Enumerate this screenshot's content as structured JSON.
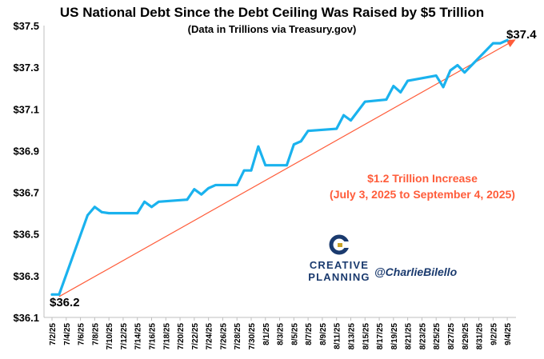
{
  "chart_data": {
    "type": "line",
    "title": "US National Debt Since the Debt Ceiling Was Raised by $5 Trillion",
    "subtitle": "(Data in Trillions via Treasury.gov)",
    "xlabel": "",
    "ylabel": "",
    "ylim": [
      36.1,
      37.5
    ],
    "y_ticks": [
      "$36.1",
      "$36.3",
      "$36.5",
      "$36.7",
      "$36.9",
      "$37.1",
      "$37.3",
      "$37.5"
    ],
    "y_tick_values": [
      36.1,
      36.3,
      36.5,
      36.7,
      36.9,
      37.1,
      37.3,
      37.5
    ],
    "x_range": [
      "2025-07-02",
      "2025-09-05"
    ],
    "x_ticks": [
      "7/2/25",
      "7/4/25",
      "7/6/25",
      "7/8/25",
      "7/10/25",
      "7/12/25",
      "7/14/25",
      "7/16/25",
      "7/18/25",
      "7/20/25",
      "7/22/25",
      "7/24/25",
      "7/26/25",
      "7/28/25",
      "7/30/25",
      "8/1/25",
      "8/3/25",
      "8/5/25",
      "8/7/25",
      "8/9/25",
      "8/11/25",
      "8/13/25",
      "8/15/25",
      "8/17/25",
      "8/19/25",
      "8/21/25",
      "8/23/25",
      "8/25/25",
      "8/27/25",
      "8/29/25",
      "8/31/25",
      "9/2/25",
      "9/4/25"
    ],
    "grid": false,
    "series": [
      {
        "color": "#1ab2ee",
        "x": [
          "2025-07-02",
          "2025-07-03",
          "2025-07-07",
          "2025-07-08",
          "2025-07-09",
          "2025-07-10",
          "2025-07-14",
          "2025-07-15",
          "2025-07-16",
          "2025-07-17",
          "2025-07-21",
          "2025-07-22",
          "2025-07-23",
          "2025-07-24",
          "2025-07-25",
          "2025-07-28",
          "2025-07-29",
          "2025-07-30",
          "2025-07-31",
          "2025-08-01",
          "2025-08-04",
          "2025-08-05",
          "2025-08-06",
          "2025-08-07",
          "2025-08-11",
          "2025-08-12",
          "2025-08-13",
          "2025-08-15",
          "2025-08-18",
          "2025-08-19",
          "2025-08-20",
          "2025-08-21",
          "2025-08-25",
          "2025-08-26",
          "2025-08-27",
          "2025-08-28",
          "2025-08-29",
          "2025-09-02",
          "2025-09-03",
          "2025-09-04"
        ],
        "values": [
          36.21,
          36.21,
          36.59,
          36.63,
          36.605,
          36.6,
          36.6,
          36.655,
          36.63,
          36.655,
          36.665,
          36.715,
          36.69,
          36.72,
          36.735,
          36.735,
          36.805,
          36.805,
          36.92,
          36.83,
          36.83,
          36.93,
          36.945,
          36.995,
          37.005,
          37.07,
          37.045,
          37.135,
          37.145,
          37.21,
          37.18,
          37.235,
          37.26,
          37.205,
          37.285,
          37.31,
          37.275,
          37.415,
          37.415,
          37.43
        ]
      }
    ],
    "trend_line": {
      "color": "#ff5c3a",
      "from": {
        "x": "2025-07-03",
        "value": 36.2
      },
      "to": {
        "x": "2025-09-05",
        "value": 37.43
      }
    },
    "annotations": {
      "start_label": "$36.2",
      "end_label": "$37.4",
      "increase_line1": "$1.2 Trillion Increase",
      "increase_line2": "(July 3, 2025 to September 4, 2025)"
    }
  },
  "branding": {
    "name_line1": "CREATIVE",
    "name_line2": "PLANNING",
    "handle": "@CharlieBilello",
    "logo_icon": "creative-planning-logo-icon",
    "colors": {
      "navy": "#1a3a6e",
      "gold": "#c9a227"
    }
  }
}
